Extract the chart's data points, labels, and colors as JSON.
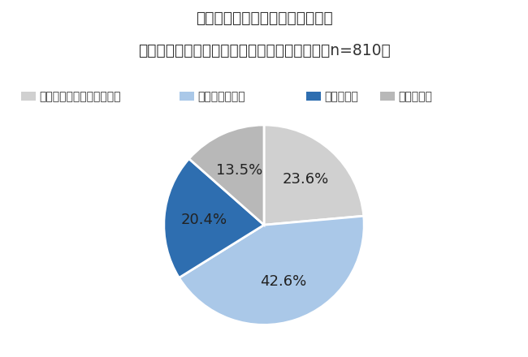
{
  "title_line1": "図３　学校の英語授業に関して、",
  "title_line2": "「将来役に立つか」などの点で不安になるか（n=810）",
  "legend_labels": [
    "特に不安になることはない",
    "やや不安になる",
    "不安になる",
    "わからない"
  ],
  "values": [
    23.6,
    42.6,
    20.4,
    13.5
  ],
  "colors": [
    "#d0d0d0",
    "#aac8e8",
    "#2e6eb0",
    "#b8b8b8"
  ],
  "pct_labels": [
    "23.6%",
    "42.6%",
    "20.4%",
    "13.5%"
  ],
  "background_color": "#ffffff",
  "title_fontsize": 13.5,
  "legend_fontsize": 10,
  "pct_fontsize": 13
}
